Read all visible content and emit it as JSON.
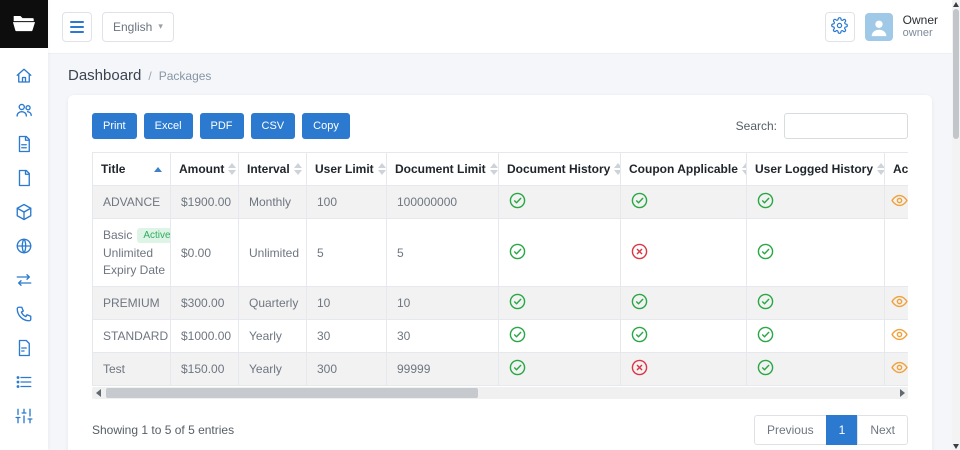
{
  "colors": {
    "primary": "#2b7ad0",
    "success": "#28a745",
    "danger": "#dc3545",
    "warning": "#f0a13a"
  },
  "header": {
    "language": "English",
    "user": {
      "name": "Owner",
      "role": "owner"
    }
  },
  "sidebar": {
    "icons": [
      "folder-logo",
      "home",
      "users",
      "document",
      "file",
      "package",
      "globe",
      "transfer",
      "phone-call",
      "report",
      "list",
      "sliders"
    ]
  },
  "breadcrumb": {
    "section": "Dashboard",
    "separator": "/",
    "page": "Packages"
  },
  "toolbar": {
    "buttons": [
      "Print",
      "Excel",
      "PDF",
      "CSV",
      "Copy"
    ],
    "search_label": "Search:"
  },
  "table": {
    "columns": [
      {
        "label": "Title",
        "sort": "asc"
      },
      {
        "label": "Amount",
        "sort": "none"
      },
      {
        "label": "Interval",
        "sort": "none"
      },
      {
        "label": "User Limit",
        "sort": "none"
      },
      {
        "label": "Document Limit",
        "sort": "none"
      },
      {
        "label": "Document History",
        "sort": "none"
      },
      {
        "label": "Coupon Applicable",
        "sort": "none"
      },
      {
        "label": "User Logged History",
        "sort": "none"
      },
      {
        "label": "Ac",
        "sort": "none"
      }
    ],
    "rows": [
      {
        "title": "ADVANCE",
        "title_badge": "",
        "title_sub1": "",
        "title_sub2": "",
        "amount": "$1900.00",
        "interval": "Monthly",
        "user_limit": "100",
        "document_limit": "100000000",
        "document_history": "check-circle",
        "coupon_applicable": "check-circle",
        "user_logged_history": "check-circle",
        "action": "eye"
      },
      {
        "title": "Basic",
        "title_badge": "Active",
        "title_sub1": "Unlimited",
        "title_sub2": "Expiry Date",
        "amount": "$0.00",
        "interval": "Unlimited",
        "user_limit": "5",
        "document_limit": "5",
        "document_history": "check-circle",
        "coupon_applicable": "x-circle",
        "user_logged_history": "check-circle",
        "action": ""
      },
      {
        "title": "PREMIUM",
        "title_badge": "",
        "title_sub1": "",
        "title_sub2": "",
        "amount": "$300.00",
        "interval": "Quarterly",
        "user_limit": "10",
        "document_limit": "10",
        "document_history": "check-circle",
        "coupon_applicable": "check-circle",
        "user_logged_history": "check-circle",
        "action": "eye"
      },
      {
        "title": "STANDARD",
        "title_badge": "",
        "title_sub1": "",
        "title_sub2": "",
        "amount": "$1000.00",
        "interval": "Yearly",
        "user_limit": "30",
        "document_limit": "30",
        "document_history": "check-circle",
        "coupon_applicable": "check-circle",
        "user_logged_history": "check-circle",
        "action": "eye"
      },
      {
        "title": "Test",
        "title_badge": "",
        "title_sub1": "",
        "title_sub2": "",
        "amount": "$150.00",
        "interval": "Yearly",
        "user_limit": "300",
        "document_limit": "99999",
        "document_history": "check-circle",
        "coupon_applicable": "x-circle",
        "user_logged_history": "check-circle",
        "action": "eye"
      }
    ]
  },
  "footer": {
    "showing": "Showing 1 to 5 of 5 entries",
    "previous": "Previous",
    "page": "1",
    "next": "Next"
  }
}
